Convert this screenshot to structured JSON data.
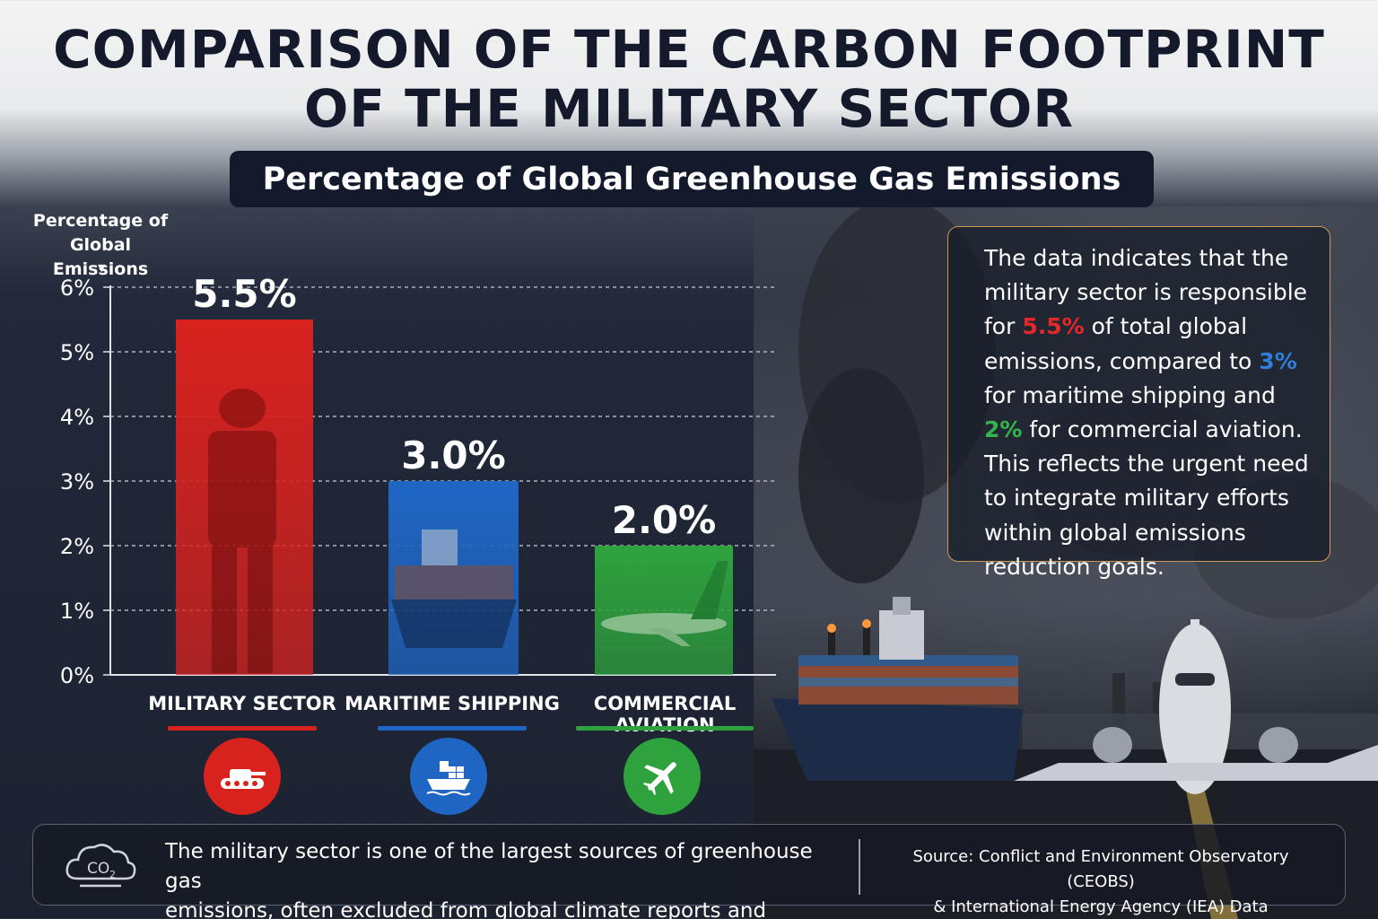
{
  "header": {
    "title_line1": "COMPARISON OF THE CARBON FOOTPRINT",
    "title_line2": "OF THE MILITARY SECTOR",
    "subtitle": "Percentage of Global Greenhouse Gas Emissions"
  },
  "chart_data": {
    "type": "bar",
    "title": "Percentage of Global Greenhouse Gas Emissions",
    "ylabel_line1": "Percentage of",
    "ylabel_line2": "Global Emissions",
    "ylim": [
      0,
      6
    ],
    "y_ticks": [
      "0%",
      "1%",
      "2%",
      "3%",
      "4%",
      "5%",
      "6%"
    ],
    "grid": true,
    "categories": [
      "MILITARY SECTOR",
      "MARITIME SHIPPING",
      "COMMERCIAL AVIATION"
    ],
    "values": [
      5.5,
      3.0,
      2.0
    ],
    "value_labels": [
      "5.5%",
      "3.0%",
      "2.0%"
    ],
    "colors": [
      "#d8221e",
      "#1f66c4",
      "#2ea33d"
    ]
  },
  "icons": {
    "military": "tank-icon",
    "maritime": "ship-icon",
    "aviation": "airplane-icon",
    "footer": "co2-cloud-icon"
  },
  "info": {
    "part1": "The data indicates that the military sector is responsible for ",
    "military_pct": "5.5%",
    "part2": " of total global emissions, compared to ",
    "maritime_pct": "3%",
    "part3": " for maritime shipping and ",
    "aviation_pct": "2%",
    "part4": " for commercial aviation. This reflects the urgent need to integrate military efforts within global emissions reduction goals."
  },
  "footer": {
    "co2_label": "CO",
    "co2_sub": "2",
    "text_line1": "The military sector is one of the largest sources of greenhouse gas",
    "text_line2": "emissions, often excluded from global climate reports and calculations.",
    "source_line1": "Source: Conflict and Environment Observatory (CEOBS)",
    "source_line2": "& International Energy Agency (IEA) Data"
  }
}
